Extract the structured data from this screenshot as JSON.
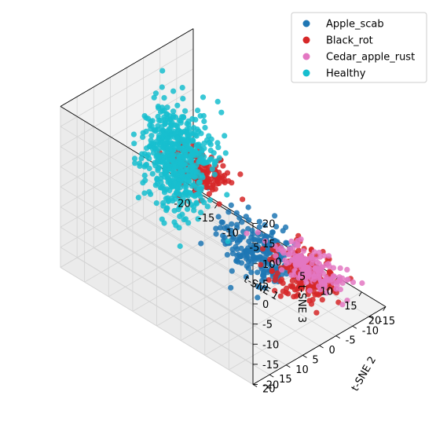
{
  "chart_data": {
    "type": "scatter",
    "projection": "3d",
    "xlabel": "t-SNE 1",
    "ylabel": "t-SNE 2",
    "zlabel": "t-SNE 3",
    "xlim": [
      -20,
      20
    ],
    "ylim": [
      -20,
      20
    ],
    "zlim": [
      -20,
      20
    ],
    "xticks": [
      -20,
      -15,
      -10,
      -5,
      0,
      5,
      10,
      15,
      20
    ],
    "yticks": [
      -15,
      -10,
      -5,
      0,
      5,
      10,
      15,
      20
    ],
    "zticks": [
      -20,
      -15,
      -10,
      -5,
      0,
      5,
      10,
      15,
      20
    ],
    "grid": true,
    "legend_position": "top-right",
    "series": [
      {
        "name": "Apple_scab",
        "color": "#1f77b4",
        "clusters": [
          {
            "center": [
              16,
              12,
              6
            ],
            "spread": [
              4,
              2.5,
              3
            ],
            "count": 220
          }
        ]
      },
      {
        "name": "Black_rot",
        "color": "#d62728",
        "clusters": [
          {
            "center": [
              -4,
              1,
              6
            ],
            "spread": [
              2.5,
              2,
              2
            ],
            "count": 140
          },
          {
            "center": [
              14,
              -4,
              -9
            ],
            "spread": [
              3,
              2.5,
              2.5
            ],
            "count": 200
          }
        ]
      },
      {
        "name": "Cedar_apple_rust",
        "color": "#e377c2",
        "clusters": [
          {
            "center": [
              10,
              -12,
              -14
            ],
            "spread": [
              3.5,
              2,
              1.2
            ],
            "count": 170
          }
        ]
      },
      {
        "name": "Healthy",
        "color": "#17becf",
        "clusters": [
          {
            "center": [
              -13,
              -6,
              0
            ],
            "spread": [
              3,
              3,
              6
            ],
            "count": 380
          },
          {
            "center": [
              -6,
              6,
              10
            ],
            "spread": [
              2.5,
              2,
              6
            ],
            "count": 260
          }
        ]
      }
    ]
  }
}
